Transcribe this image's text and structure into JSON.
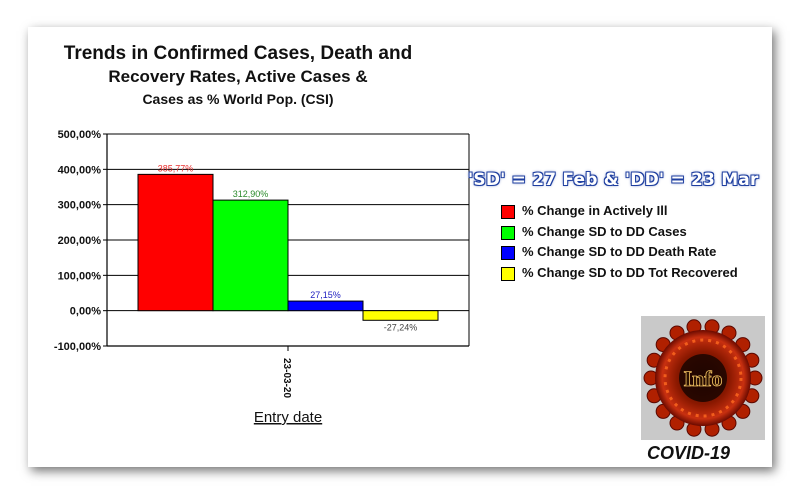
{
  "chart_data": {
    "type": "bar",
    "title_lines": [
      "Trends in Confirmed Cases, Death and",
      "Recovery Rates, Active Cases &",
      "Cases as % World Pop. (CSI)"
    ],
    "xlabel": "Entry date",
    "ylabel": "",
    "categories": [
      "23-03-20"
    ],
    "series": [
      {
        "name": "% Change in Actively Ill",
        "values": [
          385.77
        ],
        "label": "385,77%",
        "color": "#ff0000",
        "label_color": "#e83030"
      },
      {
        "name": "% Change SD to DD Cases",
        "values": [
          312.9
        ],
        "label": "312,90%",
        "color": "#00ff00",
        "label_color": "#2a8a2a"
      },
      {
        "name": "% Change SD to DD Death Rate",
        "values": [
          27.15
        ],
        "label": "27,15%",
        "color": "#0000ff",
        "label_color": "#2020c0"
      },
      {
        "name": "% Change SD to DD Tot Recovered",
        "values": [
          -27.24
        ],
        "label": "-27,24%",
        "color": "#ffff00",
        "label_color": "#444444"
      }
    ],
    "ylim": [
      -100,
      500
    ],
    "yticks": [
      {
        "value": 500,
        "label": "500,00%"
      },
      {
        "value": 400,
        "label": "400,00%"
      },
      {
        "value": 300,
        "label": "300,00%"
      },
      {
        "value": 200,
        "label": "200,00%"
      },
      {
        "value": 100,
        "label": "100,00%"
      },
      {
        "value": 0,
        "label": "0,00%"
      },
      {
        "value": -100,
        "label": "-100,00%"
      }
    ],
    "grid": true,
    "legend_position": "right"
  },
  "period_note": "'SD' = 27 Feb & 'DD' = 23 Mar",
  "logo": {
    "text": "Info",
    "caption": "COVID-19",
    "icon": "virus-icon"
  }
}
